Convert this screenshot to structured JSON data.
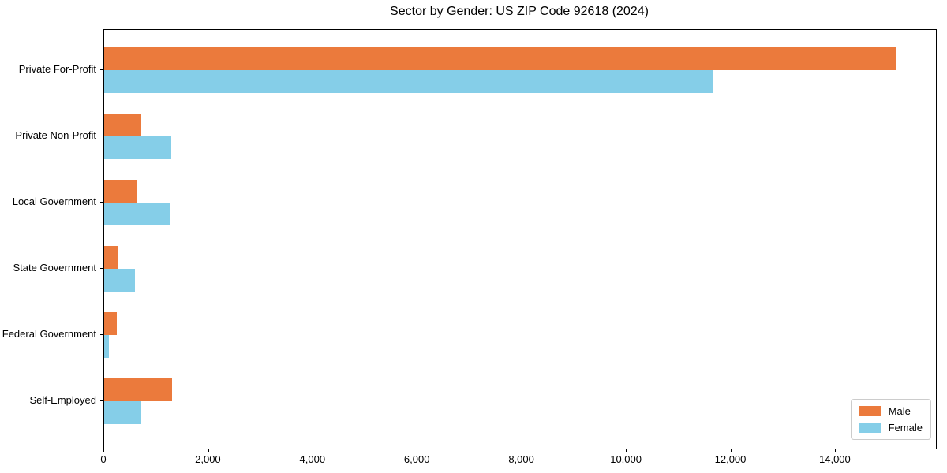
{
  "chart_data": {
    "type": "bar",
    "orientation": "horizontal",
    "title": "Sector by Gender: US ZIP Code 92618 (2024)",
    "categories": [
      "Private For-Profit",
      "Private Non-Profit",
      "Local Government",
      "State Government",
      "Federal Government",
      "Self-Employed"
    ],
    "series": [
      {
        "name": "Male",
        "color": "#eb7a3c",
        "values": [
          15160,
          710,
          630,
          260,
          240,
          1300
        ]
      },
      {
        "name": "Female",
        "color": "#85cee8",
        "values": [
          11660,
          1280,
          1250,
          590,
          90,
          710
        ]
      }
    ],
    "xlabel": "",
    "ylabel": "",
    "xlim": [
      0,
      15920
    ],
    "xticks": [
      0,
      2000,
      4000,
      6000,
      8000,
      10000,
      12000,
      14000
    ],
    "xtick_labels": [
      "0",
      "2,000",
      "4,000",
      "6,000",
      "8,000",
      "10,000",
      "12,000",
      "14,000"
    ],
    "grid": false,
    "legend_position": "lower right",
    "colors": {
      "spine": "#000000",
      "text": "#000000",
      "legend_border": "#cccccc"
    }
  }
}
